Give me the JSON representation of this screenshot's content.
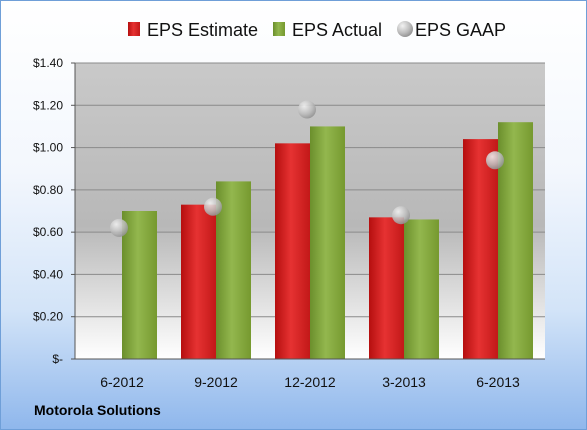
{
  "company": "Motorola Solutions",
  "colors": {
    "estimate": "#d42020",
    "actual": "#7fa33a",
    "gaap": "#bcbcbc"
  },
  "chart_data": {
    "type": "bar",
    "categories": [
      "6-2012",
      "9-2012",
      "12-2012",
      "3-2013",
      "6-2013"
    ],
    "series": [
      {
        "name": "EPS Estimate",
        "type": "bar",
        "values": [
          null,
          0.73,
          1.02,
          0.67,
          1.04
        ]
      },
      {
        "name": "EPS Actual",
        "type": "bar",
        "values": [
          0.7,
          0.84,
          1.1,
          0.66,
          1.12
        ]
      },
      {
        "name": "EPS GAAP",
        "type": "scatter",
        "values": [
          0.62,
          0.72,
          1.18,
          0.68,
          0.94
        ]
      }
    ],
    "ylim": [
      0,
      1.4
    ],
    "yticks": [
      0,
      0.2,
      0.4,
      0.6,
      0.8,
      1.0,
      1.2,
      1.4
    ],
    "ytick_labels": [
      "$-",
      "$0.20",
      "$0.40",
      "$0.60",
      "$0.80",
      "$1.00",
      "$1.20",
      "$1.40"
    ],
    "grid": true,
    "legend": "top"
  }
}
